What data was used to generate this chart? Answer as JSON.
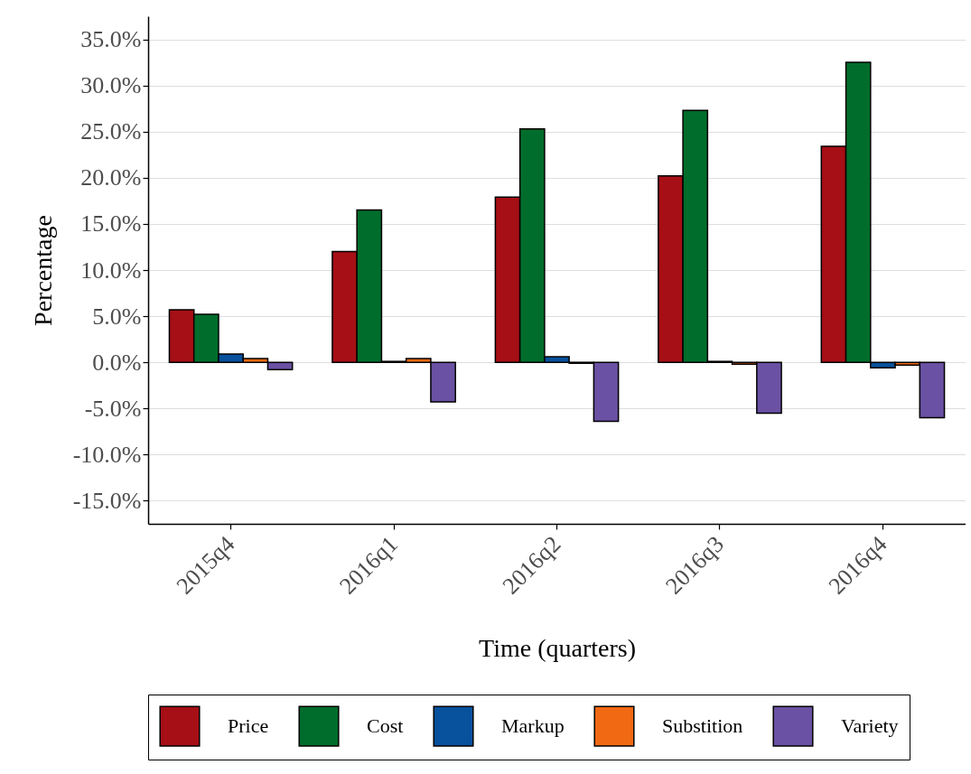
{
  "chart_data": {
    "type": "bar",
    "xlabel": "Time (quarters)",
    "ylabel": "Percentage",
    "categories": [
      "2015q4",
      "2016q1",
      "2016q2",
      "2016q3",
      "2016q4"
    ],
    "series": [
      {
        "name": "Price",
        "color": "#a50f15",
        "values": [
          5.7,
          12.0,
          17.9,
          20.2,
          23.4
        ]
      },
      {
        "name": "Cost",
        "color": "#006d2c",
        "values": [
          5.2,
          16.5,
          25.3,
          27.3,
          32.5
        ]
      },
      {
        "name": "Markup",
        "color": "#08519c",
        "values": [
          0.9,
          0.1,
          0.6,
          0.1,
          -0.6
        ]
      },
      {
        "name": "Substition",
        "color": "#f16913",
        "values": [
          0.4,
          0.4,
          -0.1,
          -0.2,
          -0.3
        ]
      },
      {
        "name": "Variety",
        "color": "#6a51a3",
        "values": [
          -0.8,
          -4.3,
          -6.4,
          -5.5,
          -6.0
        ]
      }
    ],
    "ylim": [
      -17.5,
      37.5
    ],
    "yticks": [
      {
        "value": -15,
        "label": "-15.0%"
      },
      {
        "value": -10,
        "label": "-10.0%"
      },
      {
        "value": -5,
        "label": "-5.0%"
      },
      {
        "value": 0,
        "label": "0.0%"
      },
      {
        "value": 5,
        "label": "5.0%"
      },
      {
        "value": 10,
        "label": "10.0%"
      },
      {
        "value": 15,
        "label": "15.0%"
      },
      {
        "value": 20,
        "label": "20.0%"
      },
      {
        "value": 25,
        "label": "25.0%"
      },
      {
        "value": 30,
        "label": "30.0%"
      },
      {
        "value": 35,
        "label": "35.0%"
      }
    ],
    "grid": "y",
    "legend": "bottom"
  }
}
